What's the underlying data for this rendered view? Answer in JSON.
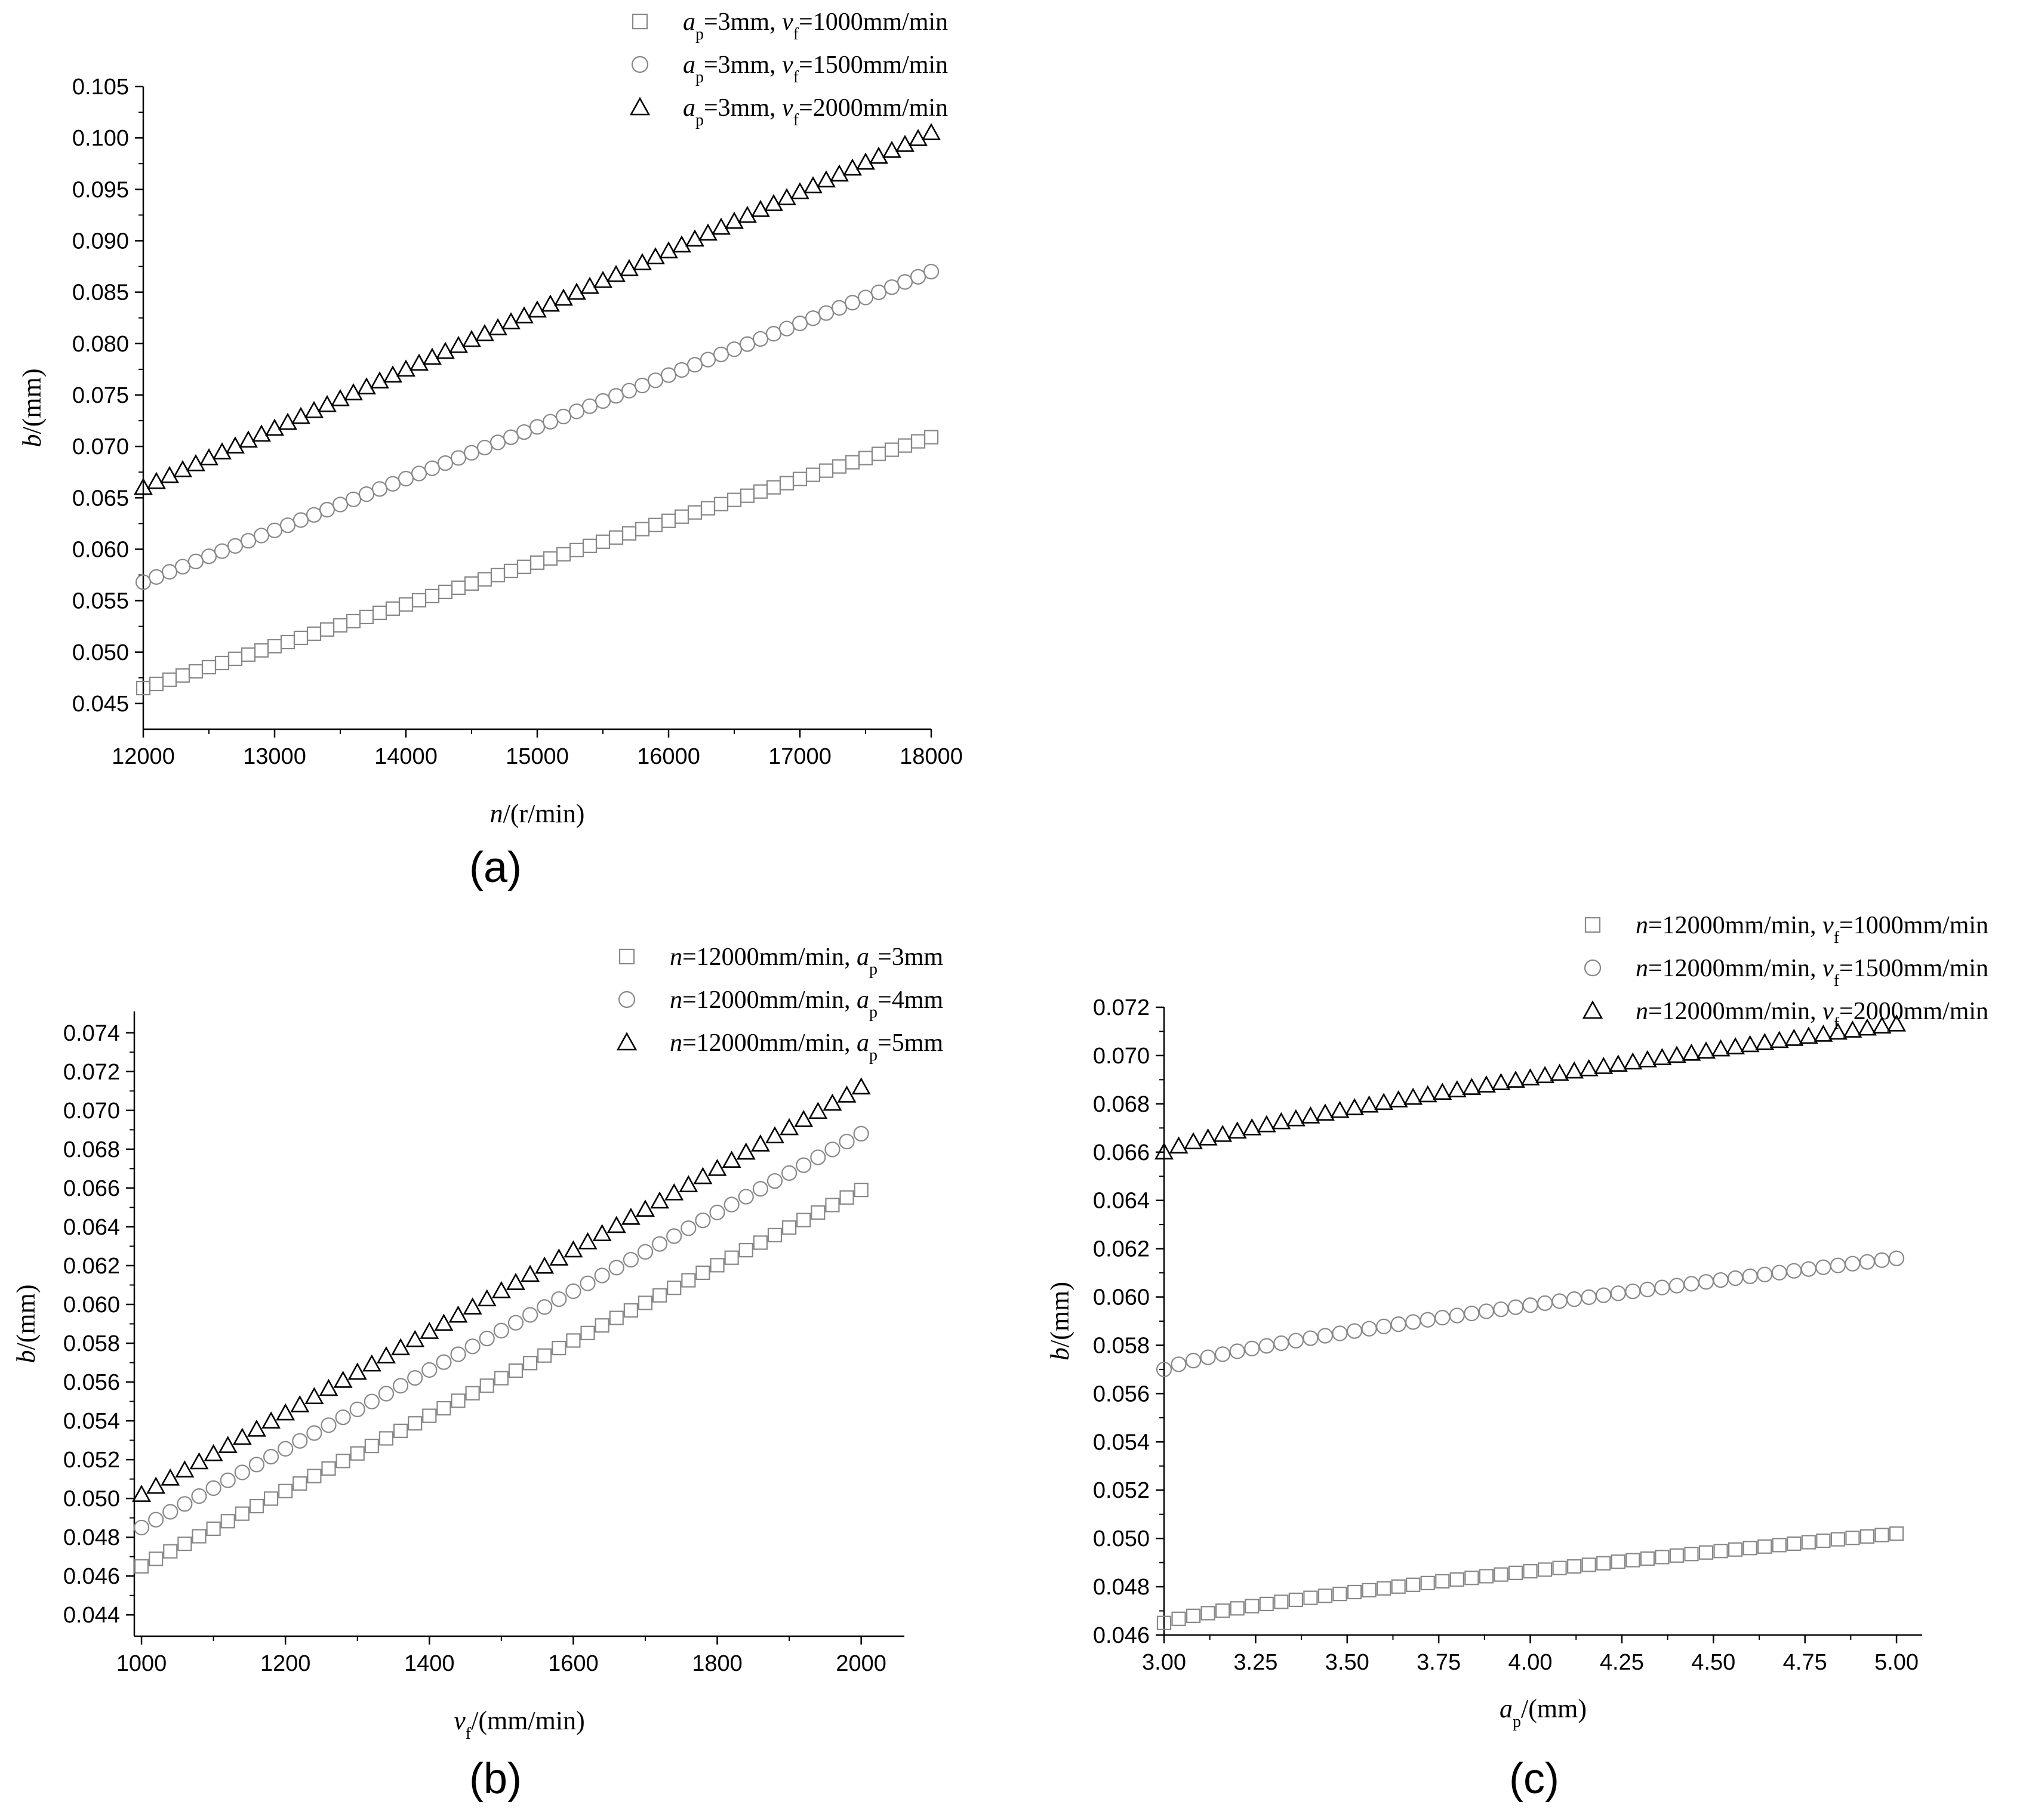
{
  "colors": {
    "axis": "#000000",
    "marker_square": "#888888",
    "marker_circle": "#888888",
    "marker_triangle": "#000000"
  },
  "chart_data": [
    {
      "id": "a",
      "type": "scatter",
      "panel_label": "(a)",
      "xlabel": {
        "italic": "n",
        "rest": "/(r/min)"
      },
      "ylabel": {
        "italic": "b",
        "rest": "/(mm)"
      },
      "xlim": [
        12000,
        18000
      ],
      "ylim": [
        0.0425,
        0.105
      ],
      "xticks": [
        12000,
        13000,
        14000,
        15000,
        16000,
        17000,
        18000
      ],
      "xtick_labels": [
        "12000",
        "13000",
        "14000",
        "15000",
        "16000",
        "17000",
        "18000"
      ],
      "yticks": [
        0.045,
        0.05,
        0.055,
        0.06,
        0.065,
        0.07,
        0.075,
        0.08,
        0.085,
        0.09,
        0.095,
        0.1,
        0.105
      ],
      "ytick_labels": [
        "0.045",
        "0.050",
        "0.055",
        "0.060",
        "0.065",
        "0.070",
        "0.075",
        "0.080",
        "0.085",
        "0.090",
        "0.095",
        "0.100",
        "0.105"
      ],
      "x": {
        "start": 12000,
        "end": 18000,
        "count": 61
      },
      "legend_position": "top-right",
      "series": [
        {
          "name": "ap=3mm, vf=1000mm/min",
          "marker": "square",
          "start": 0.0465,
          "end": 0.0709,
          "legend": [
            {
              "t": "a",
              "i": true
            },
            {
              "t": "p",
              "sub": true
            },
            {
              "t": "=3mm, "
            },
            {
              "t": "v",
              "i": true
            },
            {
              "t": "f",
              "sub": true
            },
            {
              "t": "=1000mm/min"
            }
          ]
        },
        {
          "name": "ap=3mm, vf=1500mm/min",
          "marker": "circle",
          "start": 0.0568,
          "end": 0.087,
          "legend": [
            {
              "t": "a",
              "i": true
            },
            {
              "t": "p",
              "sub": true
            },
            {
              "t": "=3mm, "
            },
            {
              "t": "v",
              "i": true
            },
            {
              "t": "f",
              "sub": true
            },
            {
              "t": "=1500mm/min"
            }
          ]
        },
        {
          "name": "ap=3mm, vf=2000mm/min",
          "marker": "triangle",
          "start": 0.066,
          "end": 0.1005,
          "legend": [
            {
              "t": "a",
              "i": true
            },
            {
              "t": "p",
              "sub": true
            },
            {
              "t": "=3mm, "
            },
            {
              "t": "v",
              "i": true
            },
            {
              "t": "f",
              "sub": true
            },
            {
              "t": "=2000mm/min"
            }
          ]
        }
      ]
    },
    {
      "id": "b",
      "type": "scatter",
      "panel_label": "(b)",
      "xlabel": {
        "italic": "v",
        "sub": "f",
        "rest": "/(mm/min)"
      },
      "ylabel": {
        "italic": "b",
        "rest": "/(mm)"
      },
      "xlim": [
        990,
        2060
      ],
      "ylim": [
        0.0429,
        0.0751
      ],
      "xticks": [
        1000,
        1200,
        1400,
        1600,
        1800,
        2000
      ],
      "xtick_labels": [
        "1000",
        "1200",
        "1400",
        "1600",
        "1800",
        "2000"
      ],
      "yticks": [
        0.044,
        0.046,
        0.048,
        0.05,
        0.052,
        0.054,
        0.056,
        0.058,
        0.06,
        0.062,
        0.064,
        0.066,
        0.068,
        0.07,
        0.072,
        0.074
      ],
      "ytick_labels": [
        "0.044",
        "0.046",
        "0.048",
        "0.050",
        "0.052",
        "0.054",
        "0.056",
        "0.058",
        "0.060",
        "0.062",
        "0.064",
        "0.066",
        "0.068",
        "0.070",
        "0.072",
        "0.074"
      ],
      "x": {
        "start": 1000,
        "end": 2000,
        "count": 51
      },
      "legend_position": "top-right",
      "series": [
        {
          "name": "n=12000mm/min, ap=3mm",
          "marker": "square",
          "start": 0.0465,
          "end": 0.0659,
          "legend": [
            {
              "t": "n",
              "i": true
            },
            {
              "t": "=12000mm/min, "
            },
            {
              "t": "a",
              "i": true
            },
            {
              "t": "p",
              "sub": true
            },
            {
              "t": "=3mm"
            }
          ]
        },
        {
          "name": "n=12000mm/min, ap=4mm",
          "marker": "circle",
          "start": 0.0485,
          "end": 0.0688,
          "legend": [
            {
              "t": "n",
              "i": true
            },
            {
              "t": "=12000mm/min, "
            },
            {
              "t": "a",
              "i": true
            },
            {
              "t": "p",
              "sub": true
            },
            {
              "t": "=4mm"
            }
          ]
        },
        {
          "name": "n=12000mm/min, ap=5mm",
          "marker": "triangle",
          "start": 0.0502,
          "end": 0.0712,
          "legend": [
            {
              "t": "n",
              "i": true
            },
            {
              "t": "=12000mm/min, "
            },
            {
              "t": "a",
              "i": true
            },
            {
              "t": "p",
              "sub": true
            },
            {
              "t": "=5mm"
            }
          ]
        }
      ]
    },
    {
      "id": "c",
      "type": "scatter",
      "panel_label": "(c)",
      "xlabel": {
        "italic": "a",
        "sub": "p",
        "rest": "/(mm)"
      },
      "ylabel": {
        "italic": "b",
        "rest": "/(mm)"
      },
      "xlim": [
        3.0,
        5.07
      ],
      "ylim": [
        0.046,
        0.072
      ],
      "xticks": [
        3.0,
        3.25,
        3.5,
        3.75,
        4.0,
        4.25,
        4.5,
        4.75,
        5.0
      ],
      "xtick_labels": [
        "3.00",
        "3.25",
        "3.50",
        "3.75",
        "4.00",
        "4.25",
        "4.50",
        "4.75",
        "5.00"
      ],
      "yticks": [
        0.046,
        0.048,
        0.05,
        0.052,
        0.054,
        0.056,
        0.058,
        0.06,
        0.062,
        0.064,
        0.066,
        0.068,
        0.07,
        0.072
      ],
      "ytick_labels": [
        "0.046",
        "0.048",
        "0.050",
        "0.052",
        "0.054",
        "0.056",
        "0.058",
        "0.060",
        "0.062",
        "0.064",
        "0.066",
        "0.068",
        "0.070",
        "0.072"
      ],
      "x": {
        "start": 3.0,
        "end": 5.0,
        "count": 51
      },
      "legend_position": "top-right",
      "series": [
        {
          "name": "n=12000mm/min, vf=1000mm/min",
          "marker": "square",
          "start": 0.0465,
          "end": 0.0502,
          "curve": 0.45,
          "legend": [
            {
              "t": "n",
              "i": true
            },
            {
              "t": "=12000mm/min, "
            },
            {
              "t": "v",
              "i": true
            },
            {
              "t": "f",
              "sub": true
            },
            {
              "t": "=1000mm/min"
            }
          ]
        },
        {
          "name": "n=12000mm/min, vf=1500mm/min",
          "marker": "circle",
          "start": 0.057,
          "end": 0.0616,
          "curve": 0.45,
          "legend": [
            {
              "t": "n",
              "i": true
            },
            {
              "t": "=12000mm/min, "
            },
            {
              "t": "v",
              "i": true
            },
            {
              "t": "f",
              "sub": true
            },
            {
              "t": "=1500mm/min"
            }
          ]
        },
        {
          "name": "n=12000mm/min, vf=2000mm/min",
          "marker": "triangle",
          "start": 0.066,
          "end": 0.0713,
          "curve": 0.45,
          "legend": [
            {
              "t": "n",
              "i": true
            },
            {
              "t": "=12000mm/min, "
            },
            {
              "t": "v",
              "i": true
            },
            {
              "t": "f",
              "sub": true
            },
            {
              "t": "=2000mm/min"
            }
          ]
        }
      ]
    }
  ]
}
